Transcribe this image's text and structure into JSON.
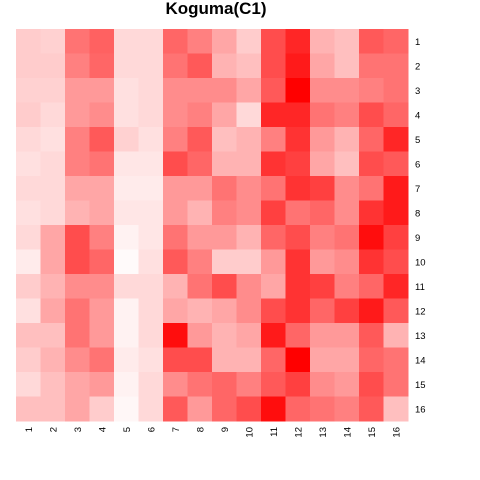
{
  "chart_data": {
    "type": "heatmap",
    "title": "Koguma(C1)",
    "x_labels": [
      "1",
      "2",
      "3",
      "4",
      "5",
      "6",
      "7",
      "8",
      "9",
      "10",
      "11",
      "12",
      "13",
      "14",
      "15",
      "16"
    ],
    "y_labels": [
      "1",
      "2",
      "3",
      "4",
      "5",
      "6",
      "7",
      "8",
      "9",
      "10",
      "11",
      "12",
      "13",
      "14",
      "15",
      "16"
    ],
    "color_low": "#ffffff",
    "color_high": "#ff0000",
    "values": [
      [
        0.2,
        0.18,
        0.55,
        0.62,
        0.15,
        0.15,
        0.6,
        0.5,
        0.35,
        0.2,
        0.7,
        0.85,
        0.3,
        0.25,
        0.65,
        0.6
      ],
      [
        0.2,
        0.2,
        0.5,
        0.6,
        0.15,
        0.15,
        0.55,
        0.65,
        0.3,
        0.25,
        0.7,
        0.9,
        0.35,
        0.25,
        0.55,
        0.55
      ],
      [
        0.18,
        0.18,
        0.4,
        0.4,
        0.12,
        0.15,
        0.45,
        0.45,
        0.45,
        0.35,
        0.65,
        1.0,
        0.45,
        0.45,
        0.5,
        0.55
      ],
      [
        0.2,
        0.15,
        0.4,
        0.45,
        0.12,
        0.15,
        0.45,
        0.5,
        0.35,
        0.15,
        0.85,
        0.85,
        0.55,
        0.5,
        0.7,
        0.6
      ],
      [
        0.15,
        0.12,
        0.5,
        0.65,
        0.18,
        0.12,
        0.5,
        0.65,
        0.25,
        0.3,
        0.5,
        0.8,
        0.4,
        0.3,
        0.6,
        0.85
      ],
      [
        0.12,
        0.15,
        0.5,
        0.55,
        0.1,
        0.1,
        0.7,
        0.6,
        0.3,
        0.3,
        0.8,
        0.75,
        0.35,
        0.25,
        0.7,
        0.65
      ],
      [
        0.15,
        0.15,
        0.35,
        0.35,
        0.08,
        0.08,
        0.4,
        0.4,
        0.55,
        0.45,
        0.55,
        0.8,
        0.75,
        0.45,
        0.55,
        0.9
      ],
      [
        0.12,
        0.15,
        0.3,
        0.35,
        0.1,
        0.1,
        0.4,
        0.3,
        0.5,
        0.45,
        0.75,
        0.55,
        0.6,
        0.45,
        0.8,
        0.9
      ],
      [
        0.15,
        0.35,
        0.7,
        0.5,
        0.05,
        0.1,
        0.55,
        0.4,
        0.4,
        0.3,
        0.6,
        0.7,
        0.5,
        0.55,
        0.95,
        0.75
      ],
      [
        0.08,
        0.35,
        0.7,
        0.6,
        0.02,
        0.12,
        0.65,
        0.5,
        0.2,
        0.2,
        0.4,
        0.8,
        0.4,
        0.45,
        0.8,
        0.7
      ],
      [
        0.2,
        0.3,
        0.45,
        0.45,
        0.15,
        0.15,
        0.3,
        0.55,
        0.7,
        0.45,
        0.35,
        0.8,
        0.75,
        0.5,
        0.6,
        0.85
      ],
      [
        0.12,
        0.35,
        0.55,
        0.4,
        0.05,
        0.15,
        0.35,
        0.3,
        0.35,
        0.45,
        0.7,
        0.8,
        0.6,
        0.75,
        0.9,
        0.65
      ],
      [
        0.25,
        0.25,
        0.55,
        0.4,
        0.05,
        0.15,
        0.95,
        0.4,
        0.3,
        0.35,
        0.9,
        0.6,
        0.4,
        0.4,
        0.65,
        0.3
      ],
      [
        0.2,
        0.3,
        0.45,
        0.55,
        0.08,
        0.12,
        0.7,
        0.7,
        0.3,
        0.3,
        0.6,
        1.0,
        0.35,
        0.35,
        0.6,
        0.55
      ],
      [
        0.15,
        0.25,
        0.35,
        0.4,
        0.05,
        0.15,
        0.45,
        0.55,
        0.6,
        0.5,
        0.65,
        0.75,
        0.45,
        0.4,
        0.7,
        0.55
      ],
      [
        0.25,
        0.25,
        0.35,
        0.2,
        0.03,
        0.15,
        0.65,
        0.4,
        0.6,
        0.7,
        0.95,
        0.6,
        0.55,
        0.5,
        0.65,
        0.25
      ]
    ]
  }
}
